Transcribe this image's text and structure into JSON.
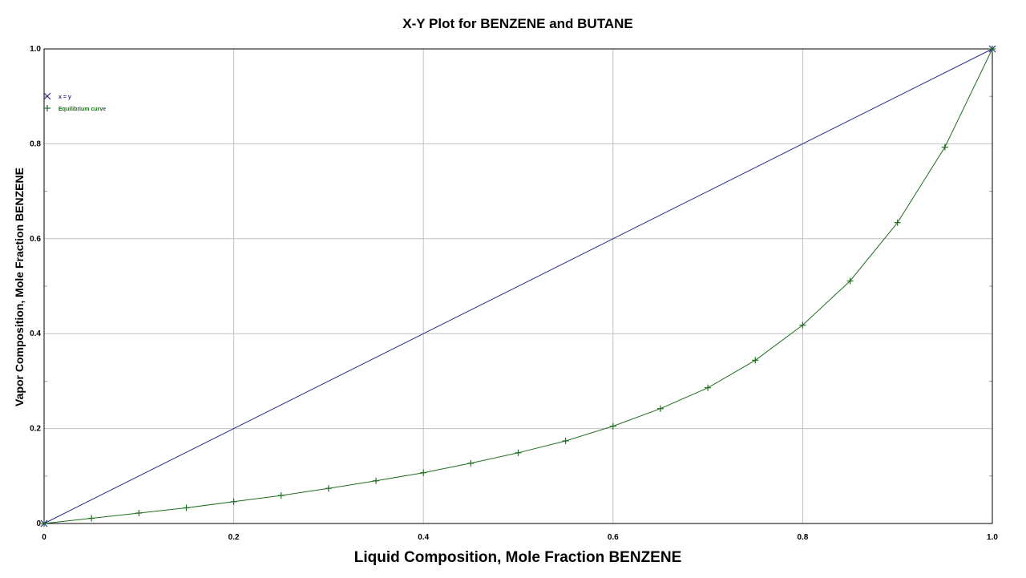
{
  "chart_data": {
    "type": "line",
    "title": "X-Y Plot for BENZENE and BUTANE",
    "xlabel": "Liquid Composition, Mole Fraction BENZENE",
    "ylabel": "Vapor Composition, Mole Fraction BENZENE",
    "xlim": [
      0,
      1
    ],
    "ylim": [
      0,
      1
    ],
    "grid": true,
    "legend_position": "top-left",
    "x_ticks": [
      {
        "value": 0,
        "label": "0"
      },
      {
        "value": 0.2,
        "label": "0.2"
      },
      {
        "value": 0.4,
        "label": "0.4"
      },
      {
        "value": 0.6,
        "label": "0.6"
      },
      {
        "value": 0.8,
        "label": "0.8"
      },
      {
        "value": 1,
        "label": "1.0"
      }
    ],
    "y_ticks": [
      {
        "value": 0,
        "label": "0"
      },
      {
        "value": 0.2,
        "label": "0.2"
      },
      {
        "value": 0.4,
        "label": "0.4"
      },
      {
        "value": 0.6,
        "label": "0.6"
      },
      {
        "value": 0.8,
        "label": "0.8"
      },
      {
        "value": 1,
        "label": "1.0"
      }
    ],
    "series": [
      {
        "name": "x = y",
        "color": "#2b2b8c",
        "marker": "x",
        "x": [
          0,
          1
        ],
        "y": [
          0,
          1
        ]
      },
      {
        "name": "Equilibrium curve",
        "color": "#1e6e1e",
        "marker": "+",
        "x": [
          0,
          0.05,
          0.1,
          0.15,
          0.2,
          0.25,
          0.3,
          0.35,
          0.4,
          0.45,
          0.5,
          0.55,
          0.6,
          0.65,
          0.7,
          0.75,
          0.8,
          0.85,
          0.9,
          0.95,
          1.0
        ],
        "y": [
          0,
          0.011,
          0.022,
          0.033,
          0.046,
          0.059,
          0.074,
          0.09,
          0.107,
          0.127,
          0.149,
          0.174,
          0.205,
          0.242,
          0.286,
          0.344,
          0.418,
          0.511,
          0.634,
          0.793,
          1.0
        ]
      }
    ]
  }
}
